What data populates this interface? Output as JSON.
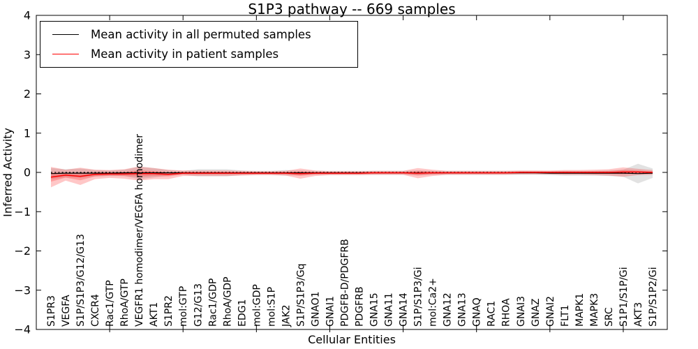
{
  "chart_data": {
    "type": "line",
    "title": "S1P3 pathway -- 669 samples",
    "xlabel": "Cellular Entities",
    "ylabel": "Inferred Activity",
    "ylim": [
      -4,
      4
    ],
    "ytick_labels": [
      "4",
      "3",
      "2",
      "1",
      "0",
      "−1",
      "−2",
      "−3",
      "−4"
    ],
    "ytick_values": [
      4,
      3,
      2,
      1,
      0,
      -1,
      -2,
      -3,
      -4
    ],
    "x_major_tick_indices": [
      4,
      9,
      14,
      19,
      24,
      29,
      34,
      39
    ],
    "grid": false,
    "legend_position": "upper left",
    "zero_line": {
      "style": "dotted",
      "color": "#000000",
      "y": 0
    },
    "categories": [
      "S1PR3",
      "VEGFA",
      "S1P/S1P3/G12/G13",
      "CXCR4",
      "Rac1/GTP",
      "RhoA/GTP",
      "VEGFR1 homodimer/VEGFA homodimer",
      "AKT1",
      "S1PR2",
      "mol:GTP",
      "G12/G13",
      "Rac1/GDP",
      "RhoA/GDP",
      "EDG1",
      "mol:GDP",
      "mol:S1P",
      "JAK2",
      "S1P/S1P3/Gq",
      "GNAO1",
      "GNAI1",
      "PDGFB-D/PDGFRB",
      "PDGFRB",
      "GNA15",
      "GNA11",
      "GNA14",
      "S1P/S1P3/Gi",
      "mol:Ca2+",
      "GNA12",
      "GNA13",
      "GNAQ",
      "RAC1",
      "RHOA",
      "GNAI3",
      "GNAZ",
      "GNAI2",
      "FLT1",
      "MAPK1",
      "MAPK3",
      "SRC",
      "S1P1/S1P/Gi",
      "AKT3",
      "S1P/S1P2/Gi"
    ],
    "series": [
      {
        "name": "Mean activity in all permuted samples",
        "color": "#000000",
        "band_color": "#9e9e9e",
        "values": [
          -0.03,
          -0.02,
          -0.02,
          -0.02,
          -0.02,
          -0.01,
          -0.01,
          -0.01,
          -0.01,
          -0.01,
          -0.01,
          -0.01,
          -0.01,
          -0.01,
          -0.01,
          -0.01,
          -0.01,
          -0.01,
          -0.01,
          -0.01,
          -0.01,
          -0.01,
          -0.01,
          -0.01,
          -0.01,
          -0.01,
          -0.01,
          -0.01,
          -0.01,
          -0.01,
          -0.01,
          -0.01,
          -0.01,
          -0.01,
          -0.02,
          -0.02,
          -0.02,
          -0.02,
          -0.02,
          -0.02,
          -0.03,
          -0.02
        ],
        "band": [
          0.14,
          0.1,
          0.12,
          0.08,
          0.07,
          0.08,
          0.16,
          0.12,
          0.07,
          0.05,
          0.09,
          0.09,
          0.09,
          0.06,
          0.05,
          0.05,
          0.07,
          0.06,
          0.05,
          0.05,
          0.05,
          0.05,
          0.05,
          0.05,
          0.05,
          0.06,
          0.05,
          0.05,
          0.05,
          0.05,
          0.05,
          0.05,
          0.05,
          0.05,
          0.05,
          0.06,
          0.06,
          0.06,
          0.07,
          0.09,
          0.25,
          0.12
        ]
      },
      {
        "name": "Mean activity in patient samples",
        "color": "#ff0000",
        "band_color": "#ff0000",
        "values": [
          -0.12,
          -0.07,
          -0.1,
          -0.05,
          -0.04,
          -0.04,
          -0.03,
          -0.03,
          -0.05,
          -0.02,
          -0.02,
          -0.02,
          -0.02,
          -0.02,
          -0.02,
          -0.02,
          -0.02,
          -0.03,
          -0.02,
          -0.02,
          -0.02,
          -0.02,
          -0.01,
          -0.01,
          -0.01,
          -0.02,
          -0.01,
          -0.01,
          -0.01,
          -0.01,
          -0.01,
          -0.01,
          0.0,
          0.0,
          0.0,
          0.0,
          0.0,
          0.0,
          0.0,
          0.01,
          0.01,
          0.0
        ],
        "band": [
          0.26,
          0.14,
          0.22,
          0.12,
          0.1,
          0.12,
          0.18,
          0.14,
          0.12,
          0.07,
          0.07,
          0.07,
          0.07,
          0.06,
          0.05,
          0.05,
          0.06,
          0.13,
          0.07,
          0.05,
          0.05,
          0.05,
          0.05,
          0.05,
          0.05,
          0.13,
          0.08,
          0.05,
          0.05,
          0.05,
          0.05,
          0.05,
          0.05,
          0.05,
          0.05,
          0.06,
          0.06,
          0.07,
          0.08,
          0.12,
          0.08,
          0.06
        ]
      }
    ]
  },
  "legend": {
    "items": [
      {
        "label": "Mean activity in all permuted samples",
        "color": "#000000"
      },
      {
        "label": "Mean activity in patient samples",
        "color": "#ff0000"
      }
    ]
  }
}
